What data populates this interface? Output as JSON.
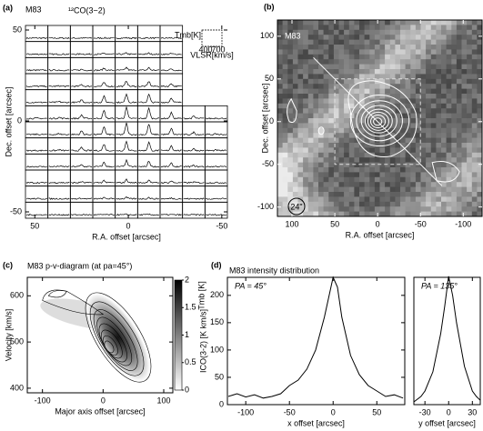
{
  "chart_data": [
    {
      "type": "spectra-grid",
      "panel_label": "(a)",
      "title": "M83",
      "subtitle": "¹²CO(3−2)",
      "xlabel": "R.A. offset [arcsec]",
      "ylabel": "Dec. offset [arcsec]",
      "xlim": [
        55,
        -53
      ],
      "ylim": [
        -53.5,
        52.5
      ],
      "xticks": [
        50,
        0,
        -50
      ],
      "yticks": [
        50,
        0,
        -50
      ],
      "inset": {
        "ylabel": "Tmb[K]",
        "xlabel": "VLSR[km/s]",
        "xticks": [
          400,
          700
        ]
      }
    },
    {
      "type": "map",
      "panel_label": "(b)",
      "annotation": "M83",
      "beam": "24\"",
      "xlabel": "R.A. offset [arcsec]",
      "ylabel": "Dec. offset [arcsec]",
      "xlim": [
        117,
        -122
      ],
      "ylim": [
        -111,
        119
      ],
      "xticks": [
        100,
        50,
        0,
        -50,
        -100
      ],
      "yticks": [
        100,
        50,
        0,
        -50,
        -100
      ]
    },
    {
      "type": "pv-diagram",
      "panel_label": "(c)",
      "title": "M83   p-v-diagram   (at pa=45°)",
      "xlabel": "Major axis offset [arcsec]",
      "ylabel": "Velocity [km/s]",
      "xlim": [
        -125,
        115
      ],
      "ylim": [
        390,
        640
      ],
      "xticks": [
        -100,
        0,
        100
      ],
      "yticks": [
        400,
        500,
        600
      ],
      "colorbar_label": "Tmb [K]",
      "clim": [
        0,
        2
      ],
      "cticks": [
        0,
        0.5,
        1,
        1.5,
        2
      ]
    },
    {
      "type": "line",
      "panel_label": "(d)",
      "title": "M83  intensity distribution",
      "annotation": "PA = 45°",
      "xlabel": "x offset [arcsec]",
      "ylabel": "ICO(3-2) [K km/s]",
      "color": "#000000",
      "xlim": [
        -121,
        82
      ],
      "ylim": [
        0,
        233
      ],
      "xticks": [
        -100,
        -50,
        0,
        50
      ],
      "yticks": [
        0,
        50,
        100,
        150,
        200
      ],
      "x": [
        -120,
        -110,
        -100,
        -90,
        -80,
        -70,
        -60,
        -50,
        -40,
        -30,
        -20,
        -10,
        0,
        5,
        10,
        20,
        30,
        40,
        50,
        60,
        70,
        80
      ],
      "values": [
        15,
        20,
        14,
        18,
        12,
        15,
        20,
        35,
        45,
        65,
        100,
        160,
        233,
        215,
        160,
        90,
        55,
        35,
        25,
        15,
        18,
        12
      ]
    },
    {
      "type": "line",
      "annotation": "PA = 135°",
      "xlabel": "y offset [arcsec]",
      "color": "#000000",
      "xlim": [
        -44,
        40
      ],
      "ylim": [
        0,
        233
      ],
      "xticks": [
        -30,
        0,
        30
      ],
      "x": [
        -44,
        -35,
        -30,
        -20,
        -10,
        -5,
        0,
        5,
        10,
        20,
        30,
        35,
        40
      ],
      "values": [
        5,
        15,
        25,
        60,
        130,
        180,
        235,
        200,
        150,
        70,
        25,
        15,
        8
      ]
    }
  ]
}
